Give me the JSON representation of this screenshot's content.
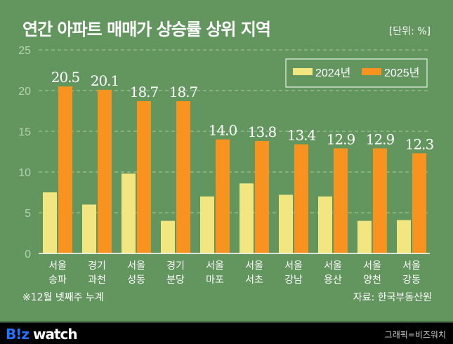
{
  "header": {
    "title": "연간 아파트 매매가 상승률 상위 지역",
    "unit": "[단위: %]"
  },
  "chart_data": {
    "type": "bar",
    "title": "연간 아파트 매매가 상승률 상위 지역",
    "ylabel": "%",
    "ylim": [
      0,
      25
    ],
    "yticks": [
      0,
      5,
      10,
      15,
      20,
      25
    ],
    "grid": true,
    "legend_position": "top-right",
    "categories": [
      [
        "서울",
        "송파"
      ],
      [
        "경기",
        "과천"
      ],
      [
        "서울",
        "성동"
      ],
      [
        "경기",
        "분당"
      ],
      [
        "서울",
        "마포"
      ],
      [
        "서울",
        "서초"
      ],
      [
        "서울",
        "강남"
      ],
      [
        "서울",
        "용산"
      ],
      [
        "서울",
        "양천"
      ],
      [
        "서울",
        "강동"
      ]
    ],
    "series": [
      {
        "name": "2024년",
        "color": "#f2e681",
        "values": [
          7.5,
          6.0,
          9.8,
          4.0,
          7.0,
          8.6,
          7.2,
          7.0,
          4.0,
          4.1
        ],
        "labels": false
      },
      {
        "name": "2025년",
        "color": "#f7931e",
        "values": [
          20.5,
          20.1,
          18.7,
          18.7,
          14.0,
          13.8,
          13.4,
          12.9,
          12.9,
          12.3
        ],
        "labels": true
      }
    ]
  },
  "footer": {
    "note": "※12월 넷째주 누계",
    "source": "자료: 한국부동산원",
    "logo_b": "B!z",
    "logo_rest": " watch",
    "credit": "그래픽=비즈워치"
  }
}
